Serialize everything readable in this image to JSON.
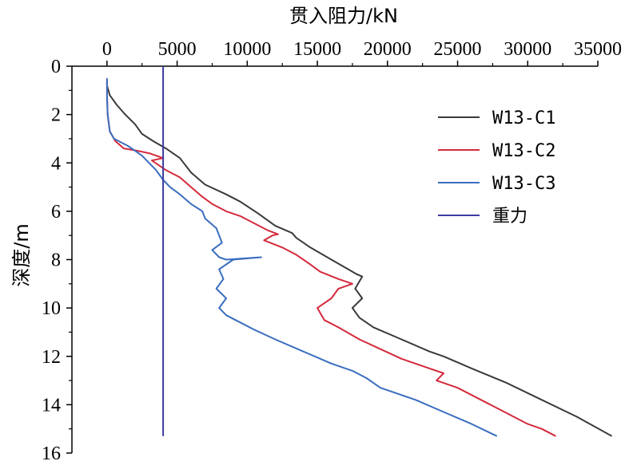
{
  "chart_data": {
    "type": "line",
    "title": "",
    "xlabel": "贯入阻力/kN",
    "ylabel": "深度/m",
    "x_axis_position": "top",
    "y_inverted": true,
    "xlim": [
      -2500,
      35000
    ],
    "ylim": [
      0,
      16
    ],
    "xticks": [
      0,
      5000,
      10000,
      15000,
      20000,
      25000,
      30000,
      35000
    ],
    "yticks": [
      0,
      2,
      4,
      6,
      8,
      10,
      12,
      14,
      16
    ],
    "legend_position": "top-right",
    "grid": false,
    "series": [
      {
        "name": "W13-C1",
        "color": "#3a3a3a",
        "points": [
          [
            0,
            0.8
          ],
          [
            200,
            1.2
          ],
          [
            700,
            1.6
          ],
          [
            1300,
            2.0
          ],
          [
            2000,
            2.4
          ],
          [
            2500,
            2.8
          ],
          [
            3300,
            3.1
          ],
          [
            4200,
            3.4
          ],
          [
            5200,
            3.8
          ],
          [
            6000,
            4.4
          ],
          [
            7000,
            4.9
          ],
          [
            8500,
            5.3
          ],
          [
            9500,
            5.6
          ],
          [
            10800,
            6.1
          ],
          [
            12000,
            6.6
          ],
          [
            13200,
            6.9
          ],
          [
            13500,
            7.1
          ],
          [
            14500,
            7.5
          ],
          [
            16000,
            8.0
          ],
          [
            17200,
            8.4
          ],
          [
            17800,
            8.6
          ],
          [
            18200,
            8.7
          ],
          [
            17700,
            9.2
          ],
          [
            18200,
            9.6
          ],
          [
            17500,
            10.0
          ],
          [
            18000,
            10.4
          ],
          [
            19000,
            10.8
          ],
          [
            21000,
            11.3
          ],
          [
            23000,
            11.8
          ],
          [
            24000,
            12.0
          ],
          [
            24800,
            12.2
          ],
          [
            26000,
            12.5
          ],
          [
            28500,
            13.1
          ],
          [
            31000,
            13.8
          ],
          [
            33500,
            14.5
          ],
          [
            36000,
            15.3
          ]
        ]
      },
      {
        "name": "W13-C2",
        "color": "#d42a3c",
        "points": [
          [
            0,
            0.5
          ],
          [
            0,
            1.2
          ],
          [
            50,
            2.0
          ],
          [
            200,
            2.7
          ],
          [
            600,
            3.1
          ],
          [
            1200,
            3.4
          ],
          [
            2200,
            3.5
          ],
          [
            3000,
            3.6
          ],
          [
            4000,
            3.8
          ],
          [
            3200,
            3.9
          ],
          [
            4200,
            4.3
          ],
          [
            5200,
            4.6
          ],
          [
            6000,
            5.0
          ],
          [
            6800,
            5.4
          ],
          [
            7500,
            5.7
          ],
          [
            8500,
            6.0
          ],
          [
            9500,
            6.2
          ],
          [
            10500,
            6.5
          ],
          [
            11500,
            6.8
          ],
          [
            12200,
            6.95
          ],
          [
            11800,
            7.0
          ],
          [
            11200,
            7.2
          ],
          [
            12500,
            7.5
          ],
          [
            13500,
            7.8
          ],
          [
            14500,
            8.2
          ],
          [
            15200,
            8.5
          ],
          [
            16500,
            8.8
          ],
          [
            17500,
            9.0
          ],
          [
            16500,
            9.2
          ],
          [
            16000,
            9.6
          ],
          [
            15000,
            10.0
          ],
          [
            15500,
            10.5
          ],
          [
            16500,
            10.8
          ],
          [
            18000,
            11.3
          ],
          [
            19500,
            11.7
          ],
          [
            21000,
            12.1
          ],
          [
            22500,
            12.4
          ],
          [
            24000,
            12.7
          ],
          [
            23500,
            13.0
          ],
          [
            25000,
            13.3
          ],
          [
            27000,
            13.9
          ],
          [
            29000,
            14.5
          ],
          [
            30000,
            14.8
          ],
          [
            31000,
            15.0
          ],
          [
            32000,
            15.3
          ]
        ]
      },
      {
        "name": "W13-C3",
        "color": "#3a6dbf",
        "points": [
          [
            0,
            0.5
          ],
          [
            0,
            1.2
          ],
          [
            50,
            2.0
          ],
          [
            200,
            2.7
          ],
          [
            500,
            3.0
          ],
          [
            1500,
            3.3
          ],
          [
            2000,
            3.5
          ],
          [
            2500,
            3.7
          ],
          [
            3000,
            4.0
          ],
          [
            3500,
            4.3
          ],
          [
            4000,
            4.7
          ],
          [
            4500,
            5.0
          ],
          [
            5200,
            5.3
          ],
          [
            6000,
            5.7
          ],
          [
            6800,
            6.0
          ],
          [
            7000,
            6.3
          ],
          [
            7800,
            6.7
          ],
          [
            8000,
            7.0
          ],
          [
            8200,
            7.3
          ],
          [
            7500,
            7.6
          ],
          [
            8000,
            7.9
          ],
          [
            8500,
            8.0
          ],
          [
            11000,
            7.9
          ],
          [
            9000,
            8.0
          ],
          [
            8000,
            8.4
          ],
          [
            8300,
            8.8
          ],
          [
            7800,
            9.2
          ],
          [
            8500,
            9.6
          ],
          [
            8000,
            10.0
          ],
          [
            8500,
            10.3
          ],
          [
            9500,
            10.6
          ],
          [
            10500,
            10.9
          ],
          [
            12000,
            11.3
          ],
          [
            14000,
            11.8
          ],
          [
            16000,
            12.3
          ],
          [
            17500,
            12.6
          ],
          [
            18500,
            12.9
          ],
          [
            19500,
            13.3
          ],
          [
            22000,
            13.8
          ],
          [
            24000,
            14.3
          ],
          [
            26000,
            14.8
          ],
          [
            27800,
            15.3
          ]
        ]
      },
      {
        "name": "重力",
        "color": "#3b3ba0",
        "points": [
          [
            4000,
            0
          ],
          [
            4000,
            15.3
          ]
        ]
      }
    ]
  }
}
